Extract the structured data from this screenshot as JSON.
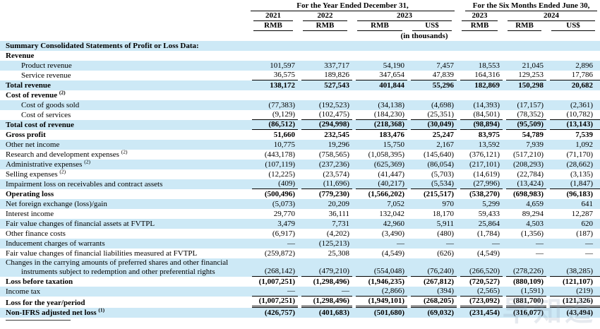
{
  "table": {
    "group1": "For the Year Ended December 31,",
    "group2": "For the Six Months Ended June 30,",
    "years": [
      "2021",
      "2022",
      "2023",
      "2023",
      "2024"
    ],
    "units": [
      "RMB",
      "RMB",
      "RMB",
      "US$",
      "RMB",
      "RMB",
      "US$"
    ],
    "note": "(in thousands)",
    "rows": [
      {
        "label": "Summary Consolidated Statements of Profit or Loss Data:",
        "bold": true,
        "blue": true,
        "values": [
          "",
          "",
          "",
          "",
          "",
          "",
          ""
        ]
      },
      {
        "label": "Revenue",
        "bold": true,
        "blue": false,
        "values": [
          "",
          "",
          "",
          "",
          "",
          "",
          ""
        ]
      },
      {
        "label": "Product revenue",
        "indent": true,
        "blue": true,
        "values": [
          "101,597",
          "337,717",
          "54,190",
          "7,457",
          "18,553",
          "21,045",
          "2,896"
        ]
      },
      {
        "label": "Service revenue",
        "indent": true,
        "blue": false,
        "underline": "single",
        "values": [
          "36,575",
          "189,826",
          "347,654",
          "47,839",
          "164,316",
          "129,253",
          "17,786"
        ]
      },
      {
        "label": "Total revenue",
        "bold": true,
        "blue": true,
        "values": [
          "138,172",
          "527,543",
          "401,844",
          "55,296",
          "182,869",
          "150,298",
          "20,682"
        ]
      },
      {
        "label": "Cost of revenue",
        "sup": "(2)",
        "bold": true,
        "blue": false,
        "values": [
          "",
          "",
          "",
          "",
          "",
          "",
          ""
        ]
      },
      {
        "label": "Cost of goods sold",
        "indent": true,
        "blue": true,
        "values": [
          "(77,383)",
          "(192,523)",
          "(34,138)",
          "(4,698)",
          "(14,393)",
          "(17,157)",
          "(2,361)"
        ]
      },
      {
        "label": "Cost of services",
        "indent": true,
        "blue": false,
        "underline": "single",
        "values": [
          "(9,129)",
          "(102,475)",
          "(184,230)",
          "(25,351)",
          "(84,501)",
          "(78,352)",
          "(10,782)"
        ]
      },
      {
        "label": "Total cost of revenue",
        "bold": true,
        "blue": true,
        "underline": "single",
        "values": [
          "(86,512)",
          "(294,998)",
          "(218,368)",
          "(30,049)",
          "(98,894)",
          "(95,509)",
          "(13,143)"
        ]
      },
      {
        "label": "Gross profit",
        "bold": true,
        "blue": false,
        "values": [
          "51,660",
          "232,545",
          "183,476",
          "25,247",
          "83,975",
          "54,789",
          "7,539"
        ]
      },
      {
        "label": "Other net income",
        "blue": true,
        "values": [
          "10,775",
          "19,296",
          "15,750",
          "2,167",
          "13,592",
          "7,939",
          "1,092"
        ]
      },
      {
        "label": "Research and development expenses",
        "sup": "(2)",
        "blue": false,
        "values": [
          "(443,178)",
          "(758,565)",
          "(1,058,395)",
          "(145,640)",
          "(376,121)",
          "(517,210)",
          "(71,170)"
        ]
      },
      {
        "label": "Administrative expenses",
        "sup": "(2)",
        "blue": true,
        "values": [
          "(107,119)",
          "(237,236)",
          "(625,369)",
          "(86,054)",
          "(217,101)",
          "(208,293)",
          "(28,662)"
        ]
      },
      {
        "label": "Selling expenses",
        "sup": "(2)",
        "blue": false,
        "values": [
          "(12,225)",
          "(23,574)",
          "(41,447)",
          "(5,703)",
          "(14,619)",
          "(22,784)",
          "(3,135)"
        ]
      },
      {
        "label": "Impairment loss on receivables and contract assets",
        "blue": true,
        "underline": "single",
        "values": [
          "(409)",
          "(11,696)",
          "(40,217)",
          "(5,534)",
          "(27,996)",
          "(13,424)",
          "(1,847)"
        ]
      },
      {
        "label": "Operating loss",
        "bold": true,
        "blue": false,
        "values": [
          "(500,496)",
          "(779,230)",
          "(1,566,202)",
          "(215,517)",
          "(538,270)",
          "(698,983)",
          "(96,183)"
        ]
      },
      {
        "label": "Net foreign exchange (loss)/gain",
        "blue": true,
        "values": [
          "(5,073)",
          "20,209",
          "7,052",
          "970",
          "5,299",
          "4,659",
          "641"
        ]
      },
      {
        "label": "Interest income",
        "blue": false,
        "values": [
          "29,770",
          "36,111",
          "132,042",
          "18,170",
          "59,433",
          "89,294",
          "12,287"
        ]
      },
      {
        "label": "Fair value changes of financial assets at FVTPL",
        "blue": true,
        "values": [
          "3,479",
          "7,731",
          "42,960",
          "5,911",
          "25,864",
          "4,503",
          "620"
        ]
      },
      {
        "label": "Other finance costs",
        "blue": false,
        "values": [
          "(6,917)",
          "(4,202)",
          "(3,490)",
          "(480)",
          "(1,784)",
          "(1,356)",
          "(187)"
        ]
      },
      {
        "label": "Inducement charges of warrants",
        "blue": true,
        "values": [
          "—",
          "(125,213)",
          "—",
          "—",
          "—",
          "—",
          "—"
        ]
      },
      {
        "label": "Fair value changes of financial liabilities measured at FVTPL",
        "blue": false,
        "values": [
          "(259,872)",
          "25,308",
          "(4,549)",
          "(626)",
          "(4,549)",
          "—",
          "—"
        ]
      },
      {
        "label": "Changes in the carrying amounts of preferred shares and other financial instruments subject to redemption and other preferential rights",
        "blue": true,
        "hang": true,
        "underline": "single",
        "values": [
          "(268,142)",
          "(479,210)",
          "(554,048)",
          "(76,240)",
          "(266,520)",
          "(278,226)",
          "(38,285)"
        ]
      },
      {
        "label": "Loss before taxation",
        "bold": true,
        "blue": false,
        "values": [
          "(1,007,251)",
          "(1,298,496)",
          "(1,946,235)",
          "(267,812)",
          "(720,527)",
          "(880,109)",
          "(121,107)"
        ]
      },
      {
        "label": "Income tax",
        "blue": true,
        "underline": "single",
        "values": [
          "—",
          "—",
          "(2,866)",
          "(394)",
          "(2,565)",
          "(1,591)",
          "(219)"
        ]
      },
      {
        "label": "Loss for the year/period",
        "bold": true,
        "blue": false,
        "underline": "double",
        "values": [
          "(1,007,251)",
          "(1,298,496)",
          "(1,949,101)",
          "(268,205)",
          "(723,092)",
          "(881,700)",
          "(121,326)"
        ]
      },
      {
        "label": "Non-IFRS adjusted net loss",
        "sup": "(1)",
        "bold": true,
        "blue": true,
        "values": [
          "(426,757)",
          "(401,683)",
          "(501,680)",
          "(69,032)",
          "(231,454)",
          "(316,077)",
          "(43,494)"
        ]
      }
    ]
  },
  "watermark": {
    "text": "早知道"
  },
  "colors": {
    "row_highlight": "#cde9f6",
    "rule_line": "#000000"
  }
}
